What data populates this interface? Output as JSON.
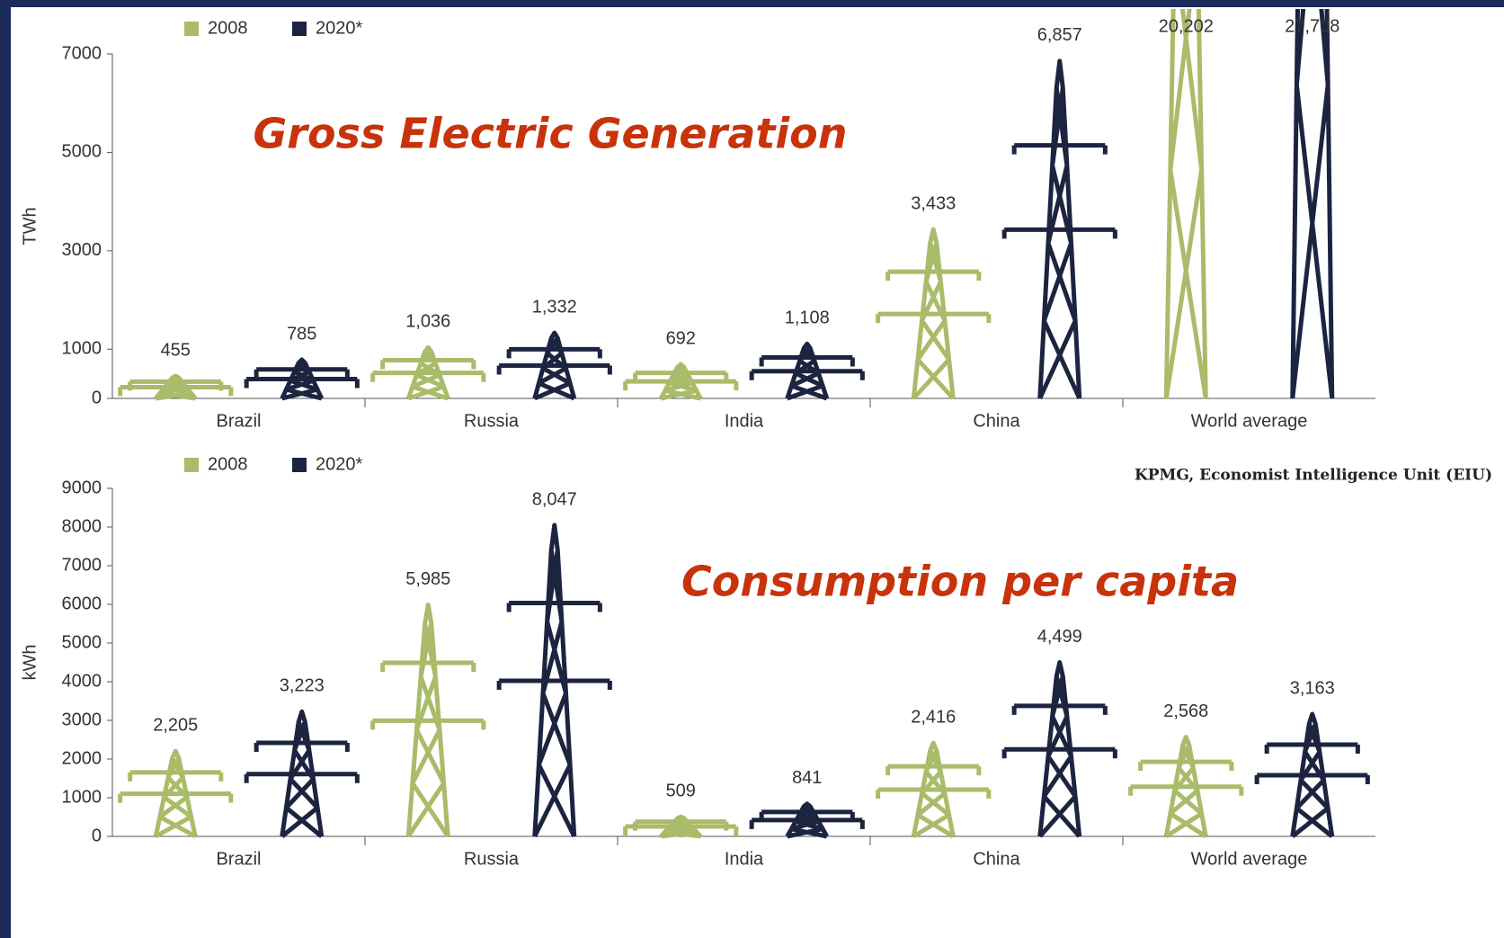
{
  "chart_data": [
    {
      "type": "bar",
      "annotation": "Gross Electric Generation",
      "ylabel": "TWh",
      "categories": [
        "Brazil",
        "Russia",
        "India",
        "China",
        "World average"
      ],
      "category_colors": [
        "#6f9a4a",
        "#3b5aa0",
        "#f0a040",
        "#c0454a",
        "#444444"
      ],
      "series": [
        {
          "name": "2008",
          "color": "#aabb6a",
          "values": [
            455,
            1036,
            692,
            3433,
            20202
          ],
          "value_labels": [
            "455",
            "1,036",
            "692",
            "3,433",
            "20,202"
          ]
        },
        {
          "name": "2020*",
          "color": "#1d2440",
          "values": [
            785,
            1332,
            1108,
            6857,
            27708
          ],
          "value_labels": [
            "785",
            "1,332",
            "1,108",
            "6,857",
            "27,708"
          ]
        }
      ],
      "ylim": [
        0,
        7000
      ],
      "yticks": [
        0,
        1000,
        3000,
        5000,
        7000
      ]
    },
    {
      "type": "bar",
      "annotation": "Consumption per capita",
      "ylabel": "kWh",
      "source": "KPMG, Economist Intelligence Unit (EIU)",
      "categories": [
        "Brazil",
        "Russia",
        "India",
        "China",
        "World average"
      ],
      "category_colors": [
        "#6f9a4a",
        "#3b5aa0",
        "#f0a040",
        "#c0454a",
        "#444444"
      ],
      "series": [
        {
          "name": "2008",
          "color": "#aabb6a",
          "values": [
            2205,
            5985,
            509,
            2416,
            2568
          ],
          "value_labels": [
            "2,205",
            "5,985",
            "509",
            "2,416",
            "2,568"
          ]
        },
        {
          "name": "2020*",
          "color": "#1d2440",
          "values": [
            3223,
            8047,
            841,
            4499,
            3163
          ],
          "value_labels": [
            "3,223",
            "8,047",
            "841",
            "4,499",
            "3,163"
          ]
        }
      ],
      "ylim": [
        0,
        9000
      ],
      "yticks": [
        0,
        1000,
        2000,
        3000,
        4000,
        5000,
        6000,
        7000,
        8000,
        9000
      ]
    }
  ]
}
